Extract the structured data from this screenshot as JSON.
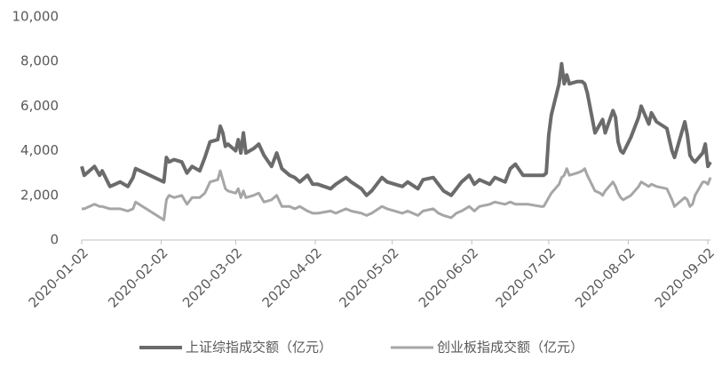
{
  "chart_data": {
    "type": "line",
    "x": [
      "2020-01-02",
      "2020-01-03",
      "2020-01-07",
      "2020-01-09",
      "2020-01-10",
      "2020-01-13",
      "2020-01-17",
      "2020-01-20",
      "2020-01-22",
      "2020-01-23",
      "2020-02-03",
      "2020-02-04",
      "2020-02-05",
      "2020-02-07",
      "2020-02-10",
      "2020-02-12",
      "2020-02-14",
      "2020-02-17",
      "2020-02-19",
      "2020-02-21",
      "2020-02-24",
      "2020-02-25",
      "2020-02-26",
      "2020-02-27",
      "2020-02-28",
      "2020-03-02",
      "2020-03-03",
      "2020-03-04",
      "2020-03-05",
      "2020-03-06",
      "2020-03-09",
      "2020-03-11",
      "2020-03-13",
      "2020-03-16",
      "2020-03-18",
      "2020-03-20",
      "2020-03-23",
      "2020-03-25",
      "2020-03-27",
      "2020-03-30",
      "2020-04-01",
      "2020-04-03",
      "2020-04-08",
      "2020-04-10",
      "2020-04-14",
      "2020-04-16",
      "2020-04-20",
      "2020-04-22",
      "2020-04-24",
      "2020-04-28",
      "2020-04-30",
      "2020-05-06",
      "2020-05-08",
      "2020-05-12",
      "2020-05-14",
      "2020-05-18",
      "2020-05-20",
      "2020-05-22",
      "2020-05-25",
      "2020-05-27",
      "2020-05-29",
      "2020-06-01",
      "2020-06-03",
      "2020-06-05",
      "2020-06-09",
      "2020-06-11",
      "2020-06-15",
      "2020-06-17",
      "2020-06-19",
      "2020-06-22",
      "2020-06-24",
      "2020-06-29",
      "2020-06-30",
      "2020-07-01",
      "2020-07-02",
      "2020-07-03",
      "2020-07-06",
      "2020-07-07",
      "2020-07-08",
      "2020-07-09",
      "2020-07-10",
      "2020-07-13",
      "2020-07-15",
      "2020-07-16",
      "2020-07-17",
      "2020-07-20",
      "2020-07-22",
      "2020-07-23",
      "2020-07-24",
      "2020-07-27",
      "2020-07-28",
      "2020-07-29",
      "2020-07-30",
      "2020-07-31",
      "2020-08-03",
      "2020-08-06",
      "2020-08-07",
      "2020-08-10",
      "2020-08-11",
      "2020-08-13",
      "2020-08-17",
      "2020-08-19",
      "2020-08-20",
      "2020-08-21",
      "2020-08-24",
      "2020-08-25",
      "2020-08-26",
      "2020-08-27",
      "2020-08-28",
      "2020-08-31",
      "2020-09-01",
      "2020-09-02",
      "2020-09-03"
    ],
    "series": [
      {
        "name": "上证综指成交额（亿元）",
        "color": "#6b6b6b",
        "width": 4,
        "values": [
          3300,
          2900,
          3300,
          2900,
          3100,
          2400,
          2600,
          2400,
          2800,
          3200,
          2600,
          3700,
          3500,
          3600,
          3500,
          3000,
          3300,
          3100,
          3700,
          4400,
          4500,
          5100,
          4800,
          4200,
          4300,
          4000,
          4500,
          3900,
          4800,
          3900,
          4100,
          4300,
          3800,
          3300,
          3900,
          3200,
          2900,
          2800,
          2600,
          2900,
          2500,
          2500,
          2300,
          2500,
          2800,
          2600,
          2300,
          2000,
          2200,
          2800,
          2600,
          2400,
          2600,
          2300,
          2700,
          2800,
          2500,
          2200,
          2000,
          2300,
          2600,
          2900,
          2500,
          2700,
          2500,
          2800,
          2600,
          3200,
          3400,
          2900,
          2900,
          2900,
          2900,
          3000,
          4700,
          5600,
          7000,
          7900,
          7000,
          7400,
          7000,
          7100,
          7100,
          7000,
          6600,
          4800,
          5200,
          5400,
          4800,
          5800,
          5500,
          4400,
          4000,
          3900,
          4600,
          5500,
          6000,
          5200,
          5700,
          5300,
          5000,
          4000,
          3700,
          4100,
          5300,
          4700,
          3800,
          3600,
          3500,
          3900,
          4300,
          3300,
          3500
        ]
      },
      {
        "name": "创业板指成交额（亿元）",
        "color": "#a6a6a6",
        "width": 3,
        "values": [
          1400,
          1400,
          1600,
          1500,
          1500,
          1400,
          1400,
          1300,
          1400,
          1700,
          900,
          1800,
          2000,
          1900,
          2000,
          1600,
          1900,
          1900,
          2100,
          2600,
          2700,
          3100,
          2700,
          2300,
          2200,
          2100,
          2300,
          1900,
          2200,
          1900,
          2000,
          2100,
          1700,
          1800,
          2000,
          1500,
          1500,
          1400,
          1500,
          1300,
          1200,
          1200,
          1300,
          1200,
          1400,
          1300,
          1200,
          1100,
          1200,
          1500,
          1400,
          1200,
          1300,
          1100,
          1300,
          1400,
          1200,
          1100,
          1000,
          1200,
          1300,
          1500,
          1300,
          1500,
          1600,
          1700,
          1600,
          1700,
          1600,
          1600,
          1600,
          1500,
          1500,
          1700,
          1900,
          2100,
          2500,
          2800,
          2900,
          3200,
          2900,
          3000,
          3100,
          3200,
          2900,
          2200,
          2100,
          2000,
          2200,
          2600,
          2400,
          2100,
          1900,
          1800,
          2000,
          2400,
          2600,
          2400,
          2500,
          2400,
          2300,
          1800,
          1500,
          1600,
          1900,
          1800,
          1500,
          1600,
          2000,
          2600,
          2600,
          2500,
          2800
        ]
      }
    ],
    "xlim": [
      "2020-01-02",
      "2020-09-03"
    ],
    "xticks": [
      "2020-01-02",
      "2020-02-02",
      "2020-03-02",
      "2020-04-02",
      "2020-05-02",
      "2020-06-02",
      "2020-07-02",
      "2020-08-02",
      "2020-09-02"
    ],
    "ylim": [
      0,
      10000
    ],
    "yticks": [
      0,
      {
        "value": 2000,
        "label": "2,000"
      },
      {
        "value": 4000,
        "label": "4,000"
      },
      {
        "value": 6000,
        "label": "6,000"
      },
      {
        "value": 8000,
        "label": "8,000"
      },
      {
        "value": 10000,
        "label": "10,000"
      }
    ],
    "grid": false,
    "legend": "bottom"
  }
}
